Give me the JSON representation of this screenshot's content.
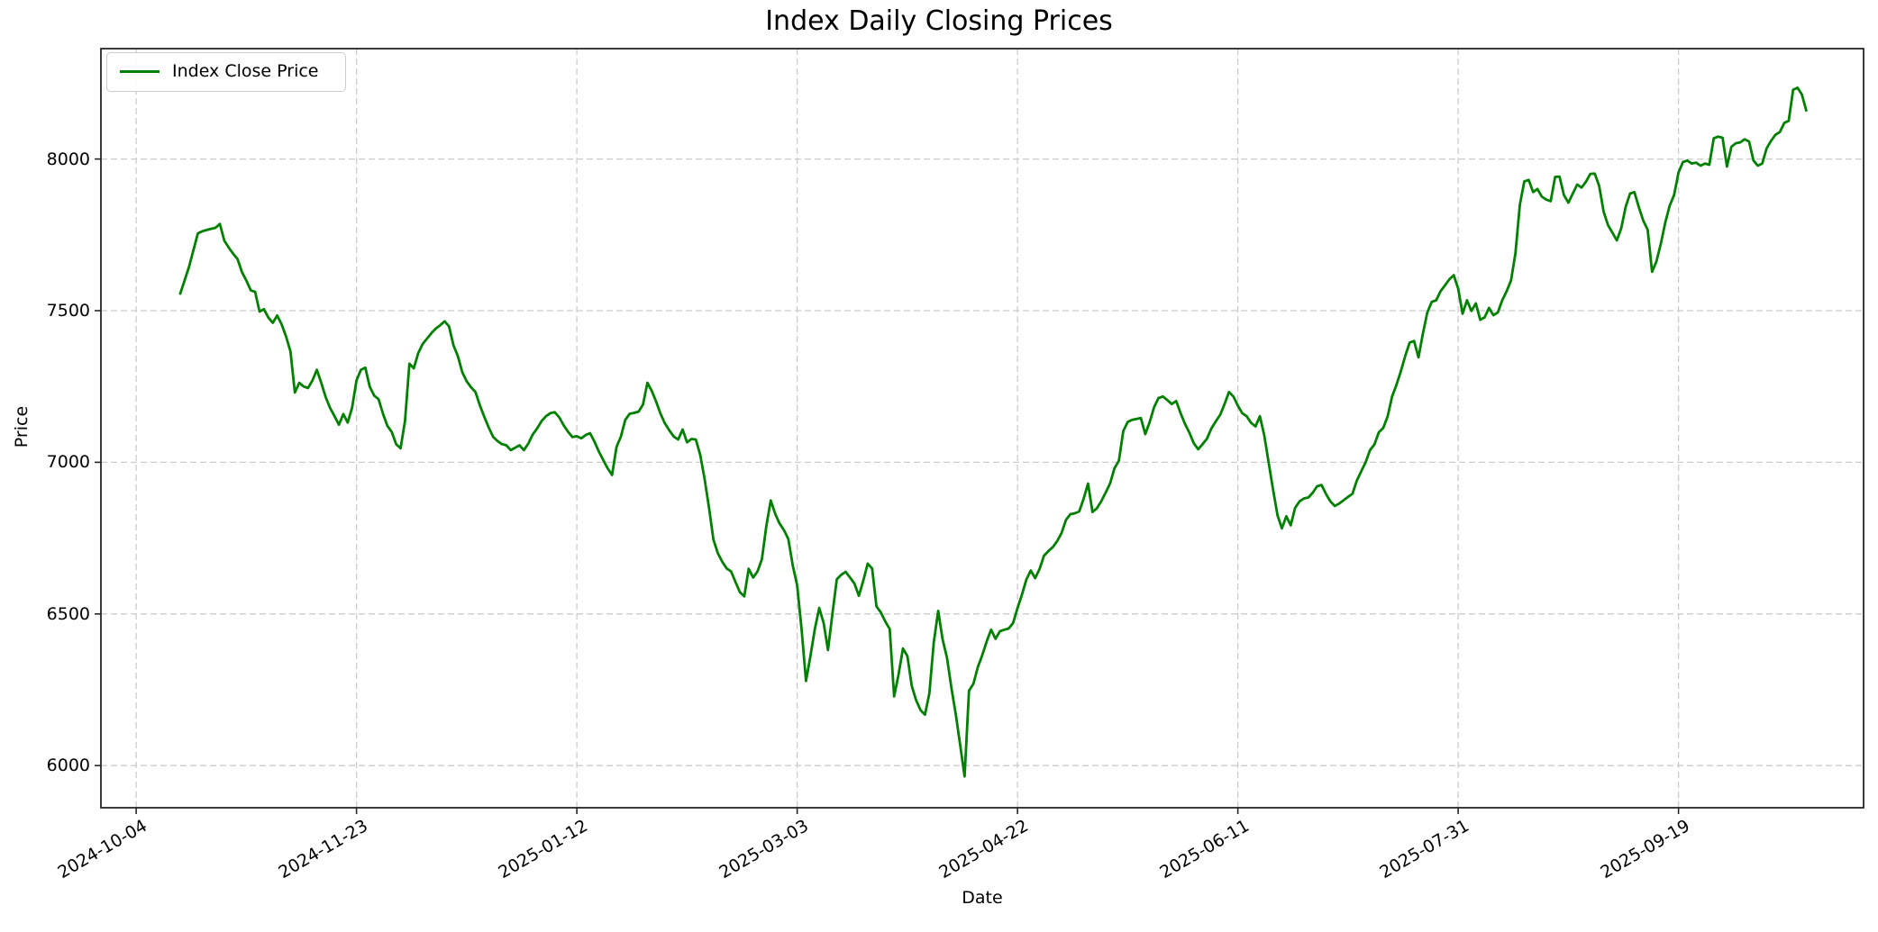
{
  "figure": {
    "title": "Index Daily Closing Prices",
    "xlabel": "Date",
    "ylabel": "Price"
  },
  "legend": {
    "label": "Index Close Price",
    "position": "upper left"
  },
  "colors": {
    "line": "#008000",
    "grid": "#cccccc",
    "spine": "#262626",
    "text": "#000000",
    "background": "#ffffff",
    "legend_border": "#cccccc"
  },
  "chart_data": {
    "type": "line",
    "title": "Index Daily Closing Prices",
    "xlabel": "Date",
    "ylabel": "Price",
    "grid": true,
    "grid_style": "dashed",
    "legend_position": "upper left",
    "x_ticks": [
      "2024-10-04",
      "2024-11-23",
      "2025-01-12",
      "2025-03-03",
      "2025-04-22",
      "2025-06-11",
      "2025-07-31",
      "2025-09-19"
    ],
    "y_ticks": [
      6000,
      6500,
      7000,
      7500,
      8000
    ],
    "xlim": [
      "2024-09-26",
      "2025-10-31"
    ],
    "ylim": [
      5861,
      8364
    ],
    "series": [
      {
        "name": "Index Close Price",
        "color": "#008000",
        "start_date": "2024-10-14",
        "end_date": "2025-10-18",
        "frequency": "daily",
        "values": [
          7556,
          7600,
          7645,
          7700,
          7755,
          7762,
          7766,
          7770,
          7773,
          7786,
          7731,
          7708,
          7688,
          7670,
          7627,
          7599,
          7567,
          7562,
          7497,
          7505,
          7477,
          7460,
          7484,
          7455,
          7415,
          7366,
          7230,
          7262,
          7250,
          7245,
          7270,
          7305,
          7262,
          7215,
          7179,
          7152,
          7124,
          7159,
          7131,
          7180,
          7270,
          7305,
          7312,
          7249,
          7220,
          7208,
          7160,
          7120,
          7100,
          7060,
          7046,
          7135,
          7325,
          7310,
          7360,
          7390,
          7408,
          7426,
          7441,
          7452,
          7465,
          7448,
          7386,
          7350,
          7297,
          7267,
          7247,
          7232,
          7188,
          7150,
          7115,
          7084,
          7070,
          7060,
          7056,
          7040,
          7048,
          7056,
          7040,
          7062,
          7092,
          7112,
          7136,
          7152,
          7162,
          7165,
          7148,
          7122,
          7101,
          7083,
          7086,
          7079,
          7090,
          7096,
          7068,
          7035,
          7007,
          6980,
          6958,
          7050,
          7085,
          7140,
          7160,
          7163,
          7167,
          7190,
          7262,
          7235,
          7200,
          7160,
          7128,
          7105,
          7085,
          7075,
          7108,
          7066,
          7077,
          7075,
          7025,
          6945,
          6850,
          6745,
          6700,
          6672,
          6650,
          6640,
          6605,
          6572,
          6558,
          6649,
          6620,
          6640,
          6681,
          6790,
          6874,
          6830,
          6798,
          6776,
          6747,
          6660,
          6594,
          6450,
          6279,
          6360,
          6450,
          6520,
          6470,
          6381,
          6500,
          6614,
          6629,
          6639,
          6620,
          6600,
          6560,
          6610,
          6666,
          6650,
          6525,
          6505,
          6475,
          6450,
          6228,
          6300,
          6386,
          6361,
          6262,
          6215,
          6183,
          6168,
          6238,
          6406,
          6510,
          6416,
          6355,
          6256,
          6167,
          6068,
          5964,
          6247,
          6270,
          6325,
          6364,
          6409,
          6448,
          6418,
          6443,
          6448,
          6452,
          6470,
          6519,
          6563,
          6613,
          6643,
          6618,
          6648,
          6692,
          6707,
          6720,
          6740,
          6767,
          6810,
          6829,
          6832,
          6838,
          6880,
          6930,
          6836,
          6848,
          6871,
          6900,
          6930,
          6980,
          7005,
          7103,
          7133,
          7140,
          7143,
          7146,
          7093,
          7133,
          7182,
          7212,
          7217,
          7205,
          7192,
          7202,
          7162,
          7127,
          7098,
          7063,
          7043,
          7060,
          7078,
          7112,
          7135,
          7157,
          7192,
          7232,
          7217,
          7187,
          7162,
          7152,
          7130,
          7118,
          7152,
          7088,
          6999,
          6910,
          6826,
          6782,
          6822,
          6792,
          6850,
          6871,
          6881,
          6884,
          6900,
          6921,
          6925,
          6896,
          6871,
          6856,
          6864,
          6875,
          6886,
          6896,
          6940,
          6970,
          7000,
          7040,
          7059,
          7099,
          7113,
          7152,
          7217,
          7256,
          7301,
          7351,
          7395,
          7400,
          7346,
          7425,
          7494,
          7529,
          7534,
          7564,
          7583,
          7603,
          7617,
          7573,
          7490,
          7534,
          7499,
          7524,
          7470,
          7478,
          7509,
          7485,
          7494,
          7534,
          7564,
          7600,
          7690,
          7850,
          7926,
          7931,
          7891,
          7901,
          7876,
          7866,
          7861,
          7941,
          7942,
          7881,
          7856,
          7886,
          7916,
          7906,
          7925,
          7951,
          7952,
          7911,
          7827,
          7782,
          7757,
          7732,
          7772,
          7841,
          7886,
          7891,
          7841,
          7797,
          7767,
          7628,
          7663,
          7722,
          7790,
          7846,
          7881,
          7955,
          7990,
          7995,
          7985,
          7988,
          7978,
          7985,
          7981,
          8068,
          8074,
          8070,
          7975,
          8040,
          8052,
          8055,
          8065,
          8058,
          7995,
          7978,
          7985,
          8035,
          8060,
          8080,
          8089,
          8119,
          8126,
          8228,
          8235,
          8213,
          8160
        ]
      }
    ]
  }
}
